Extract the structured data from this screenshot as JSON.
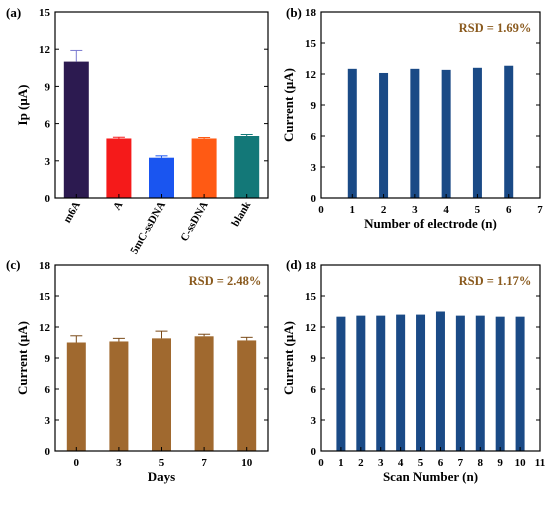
{
  "colors": {
    "navy": "#1a4a86",
    "brown": "#a0692f",
    "rsd_text": "#8a5a1e",
    "err_a": "#7a7ad0"
  },
  "chart_data": [
    {
      "panel": "(a)",
      "type": "bar",
      "categories": [
        "m6A",
        "A",
        "5mC-ssDNA",
        "C-ssDNA",
        "blank"
      ],
      "values": [
        11.0,
        4.8,
        3.25,
        4.8,
        5.0
      ],
      "errors": [
        0.9,
        0.1,
        0.15,
        0.08,
        0.12
      ],
      "colors": [
        "#2c1a50",
        "#f51a1a",
        "#1a55f0",
        "#ff5a14",
        "#137878"
      ],
      "xlabel": "",
      "ylabel": "Ip (μA)",
      "ylim": [
        0,
        15
      ],
      "yticks": [
        "0",
        "3",
        "6",
        "9",
        "12",
        "15"
      ],
      "annotation": ""
    },
    {
      "panel": "(b)",
      "type": "bar",
      "x": [
        1,
        2,
        3,
        4,
        5,
        6
      ],
      "values": [
        12.5,
        12.1,
        12.5,
        12.4,
        12.6,
        12.8
      ],
      "xlabel": "Number of electrode (n)",
      "ylabel": "Current (μA)",
      "xlim": [
        0,
        7
      ],
      "ylim": [
        0,
        18
      ],
      "xticks": [
        "0",
        "1",
        "2",
        "3",
        "4",
        "5",
        "6",
        "7"
      ],
      "yticks": [
        "0",
        "3",
        "6",
        "9",
        "12",
        "15",
        "18"
      ],
      "annotation": "RSD = 1.69%"
    },
    {
      "panel": "(c)",
      "type": "bar",
      "categories": [
        "0",
        "3",
        "5",
        "7",
        "10"
      ],
      "values": [
        10.5,
        10.6,
        10.9,
        11.1,
        10.7
      ],
      "errors": [
        0.65,
        0.3,
        0.7,
        0.2,
        0.3
      ],
      "xlabel": "Days",
      "ylabel": "Current (μA)",
      "ylim": [
        0,
        18
      ],
      "yticks": [
        "0",
        "3",
        "6",
        "9",
        "12",
        "15",
        "18"
      ],
      "annotation": "RSD = 2.48%"
    },
    {
      "panel": "(d)",
      "type": "bar",
      "x": [
        1,
        2,
        3,
        4,
        5,
        6,
        7,
        8,
        9,
        10
      ],
      "values": [
        13.0,
        13.1,
        13.1,
        13.2,
        13.2,
        13.5,
        13.1,
        13.1,
        13.0,
        13.0
      ],
      "xlabel": "Scan Number (n)",
      "ylabel": "Current (μA)",
      "xlim": [
        0,
        11
      ],
      "ylim": [
        0,
        18
      ],
      "xticks": [
        "0",
        "1",
        "2",
        "3",
        "4",
        "5",
        "6",
        "7",
        "8",
        "9",
        "10",
        "11"
      ],
      "yticks": [
        "0",
        "3",
        "6",
        "9",
        "12",
        "15",
        "18"
      ],
      "annotation": "RSD = 1.17%"
    }
  ]
}
